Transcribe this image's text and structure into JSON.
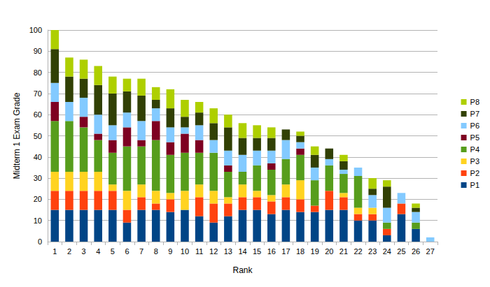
{
  "chart_data": {
    "type": "bar",
    "stacked": true,
    "grid": true,
    "legend": "right",
    "xlabel": "Rank",
    "ylabel": "Midterm 1 Exam Grade",
    "categories": [
      "1",
      "2",
      "3",
      "4",
      "5",
      "6",
      "7",
      "8",
      "9",
      "10",
      "11",
      "12",
      "13",
      "14",
      "15",
      "16",
      "17",
      "18",
      "19",
      "20",
      "21",
      "22",
      "23",
      "24",
      "25",
      "26",
      "27"
    ],
    "ylim": [
      0,
      100
    ],
    "yticks": [
      0,
      10,
      20,
      30,
      40,
      50,
      60,
      70,
      80,
      90,
      100
    ],
    "series": [
      {
        "name": "P1",
        "color": "#004586",
        "values": [
          15,
          15,
          15,
          15,
          15,
          9,
          15,
          15,
          14,
          15,
          12,
          9,
          12,
          15,
          15,
          13,
          15,
          14,
          14,
          15,
          15,
          10,
          10,
          3,
          13,
          6,
          0
        ]
      },
      {
        "name": "P2",
        "color": "#ff420e",
        "values": [
          9,
          9,
          9,
          9,
          9,
          6,
          6,
          3,
          6,
          0,
          9,
          9,
          6,
          6,
          6,
          6,
          6,
          6,
          3,
          9,
          6,
          3,
          3,
          3,
          5,
          0,
          0
        ]
      },
      {
        "name": "P3",
        "color": "#ffd320",
        "values": [
          9,
          9,
          9,
          9,
          3,
          9,
          6,
          6,
          3,
          9,
          6,
          6,
          3,
          6,
          3,
          3,
          6,
          9,
          0,
          0,
          2,
          3,
          3,
          0,
          0,
          0,
          0
        ]
      },
      {
        "name": "P4",
        "color": "#579d1c",
        "values": [
          24,
          24,
          21,
          15,
          15,
          21,
          18,
          24,
          18,
          18,
          15,
          18,
          12,
          6,
          12,
          12,
          12,
          12,
          12,
          12,
          9,
          15,
          0,
          3,
          0,
          3,
          0
        ]
      },
      {
        "name": "P5",
        "color": "#7e0021",
        "values": [
          9,
          0,
          5,
          3,
          6,
          9,
          3,
          9,
          6,
          9,
          6,
          0,
          3,
          0,
          0,
          3,
          0,
          3,
          0,
          0,
          0,
          0,
          0,
          0,
          0,
          0,
          0
        ]
      },
      {
        "name": "P6",
        "color": "#83caff",
        "values": [
          9,
          9,
          9,
          9,
          7,
          7,
          9,
          6,
          7,
          3,
          7,
          6,
          7,
          8,
          7,
          6,
          9,
          3,
          6,
          3,
          2,
          4,
          6,
          7,
          5,
          5,
          2
        ]
      },
      {
        "name": "P7",
        "color": "#314004",
        "values": [
          16,
          12,
          9,
          14,
          15,
          10,
          12,
          4,
          9,
          5,
          6,
          8,
          11,
          8,
          6,
          6,
          5,
          3,
          6,
          5,
          4,
          0,
          3,
          10,
          0,
          2,
          0
        ]
      },
      {
        "name": "P8",
        "color": "#aecf00",
        "values": [
          9,
          9,
          9,
          9,
          8,
          6,
          8,
          6,
          9,
          8,
          5,
          7,
          6,
          7,
          6,
          5,
          0,
          2,
          4,
          0,
          3,
          0,
          5,
          3,
          0,
          2,
          0
        ]
      }
    ]
  }
}
